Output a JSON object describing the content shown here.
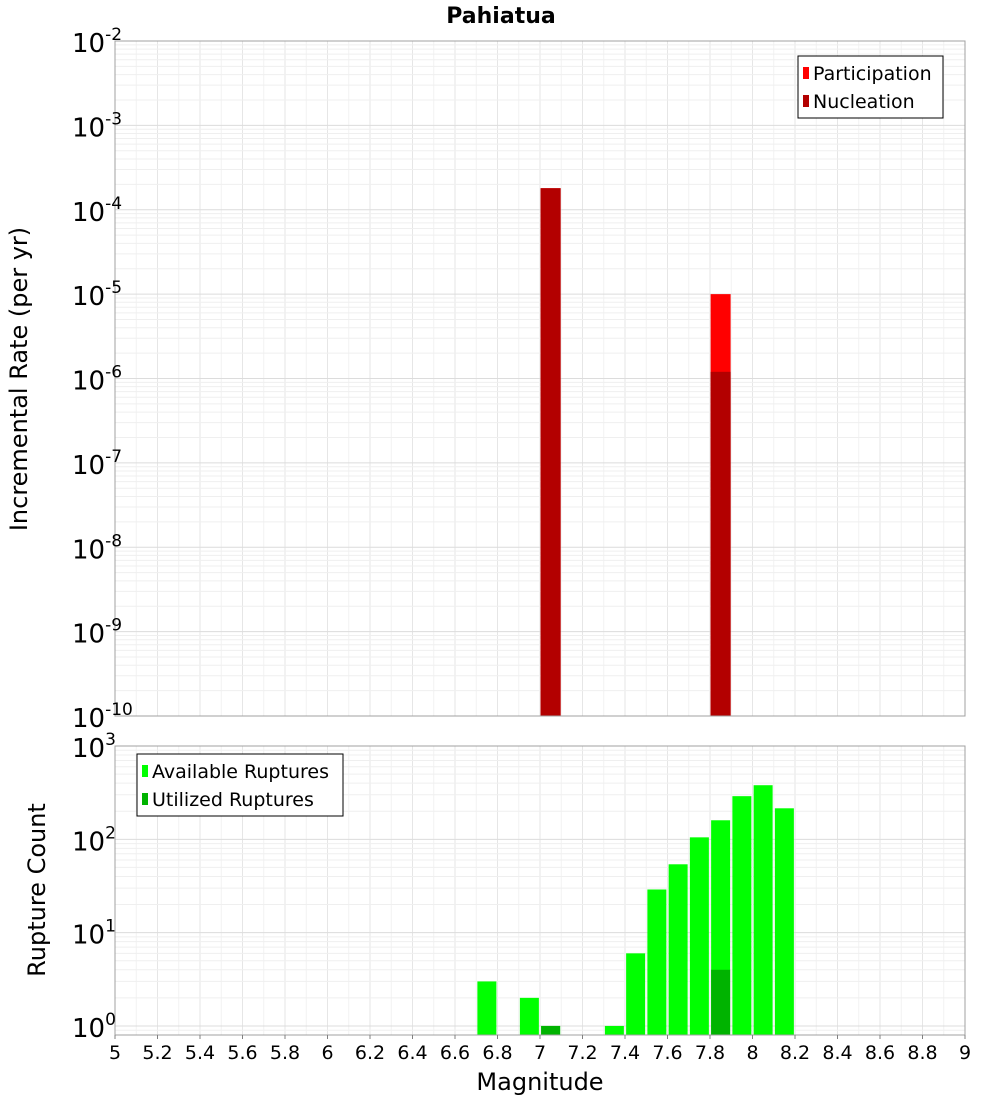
{
  "chart_data": [
    {
      "type": "bar",
      "title": "Pahiatua",
      "xlabel": "",
      "ylabel": "Incremental Rate (per yr)",
      "yscale": "log",
      "ylim": [
        1e-10,
        0.01
      ],
      "xlim": [
        5,
        9
      ],
      "grid": true,
      "legend_position": "top-right",
      "y_tick_labels": [
        {
          "base": "10",
          "exp": "-10",
          "value": 1e-10
        },
        {
          "base": "10",
          "exp": "-9",
          "value": 1e-09
        },
        {
          "base": "10",
          "exp": "-8",
          "value": 1e-08
        },
        {
          "base": "10",
          "exp": "-7",
          "value": 1e-07
        },
        {
          "base": "10",
          "exp": "-6",
          "value": 1e-06
        },
        {
          "base": "10",
          "exp": "-5",
          "value": 1e-05
        },
        {
          "base": "10",
          "exp": "-4",
          "value": 0.0001
        },
        {
          "base": "10",
          "exp": "-3",
          "value": 0.001
        },
        {
          "base": "10",
          "exp": "-2",
          "value": 0.01
        }
      ],
      "series": [
        {
          "name": "Participation",
          "color": "#ff0000",
          "points": [
            {
              "x": 7.05,
              "y": 0.00018
            },
            {
              "x": 7.85,
              "y": 1e-05
            }
          ]
        },
        {
          "name": "Nucleation",
          "color": "#b30000",
          "points": [
            {
              "x": 7.05,
              "y": 0.00018
            },
            {
              "x": 7.85,
              "y": 1.2e-06
            }
          ]
        }
      ]
    },
    {
      "type": "bar",
      "title": "",
      "xlabel": "Magnitude",
      "ylabel": "Rupture Count",
      "yscale": "log",
      "ylim": [
        0.8,
        1000
      ],
      "xlim": [
        5,
        9
      ],
      "grid": true,
      "legend_position": "top-left",
      "x_ticks": [
        "5",
        "5.2",
        "5.4",
        "5.6",
        "5.8",
        "6",
        "6.2",
        "6.4",
        "6.6",
        "6.8",
        "7",
        "7.2",
        "7.4",
        "7.6",
        "7.8",
        "8",
        "8.2",
        "8.4",
        "8.6",
        "8.8",
        "9"
      ],
      "y_tick_labels": [
        {
          "base": "10",
          "exp": "0",
          "value": 1
        },
        {
          "base": "10",
          "exp": "1",
          "value": 10
        },
        {
          "base": "10",
          "exp": "2",
          "value": 100
        },
        {
          "base": "10",
          "exp": "3",
          "value": 1000
        }
      ],
      "series": [
        {
          "name": "Available Ruptures",
          "color": "#00ff00",
          "points": [
            {
              "x": 6.75,
              "y": 3
            },
            {
              "x": 6.95,
              "y": 2
            },
            {
              "x": 7.05,
              "y": 1
            },
            {
              "x": 7.35,
              "y": 1
            },
            {
              "x": 7.45,
              "y": 6
            },
            {
              "x": 7.55,
              "y": 29
            },
            {
              "x": 7.65,
              "y": 54
            },
            {
              "x": 7.75,
              "y": 105
            },
            {
              "x": 7.85,
              "y": 160
            },
            {
              "x": 7.95,
              "y": 290
            },
            {
              "x": 8.05,
              "y": 380
            },
            {
              "x": 8.15,
              "y": 215
            }
          ]
        },
        {
          "name": "Utilized Ruptures",
          "color": "#00b300",
          "points": [
            {
              "x": 7.05,
              "y": 1
            },
            {
              "x": 7.85,
              "y": 4
            }
          ]
        }
      ]
    }
  ]
}
